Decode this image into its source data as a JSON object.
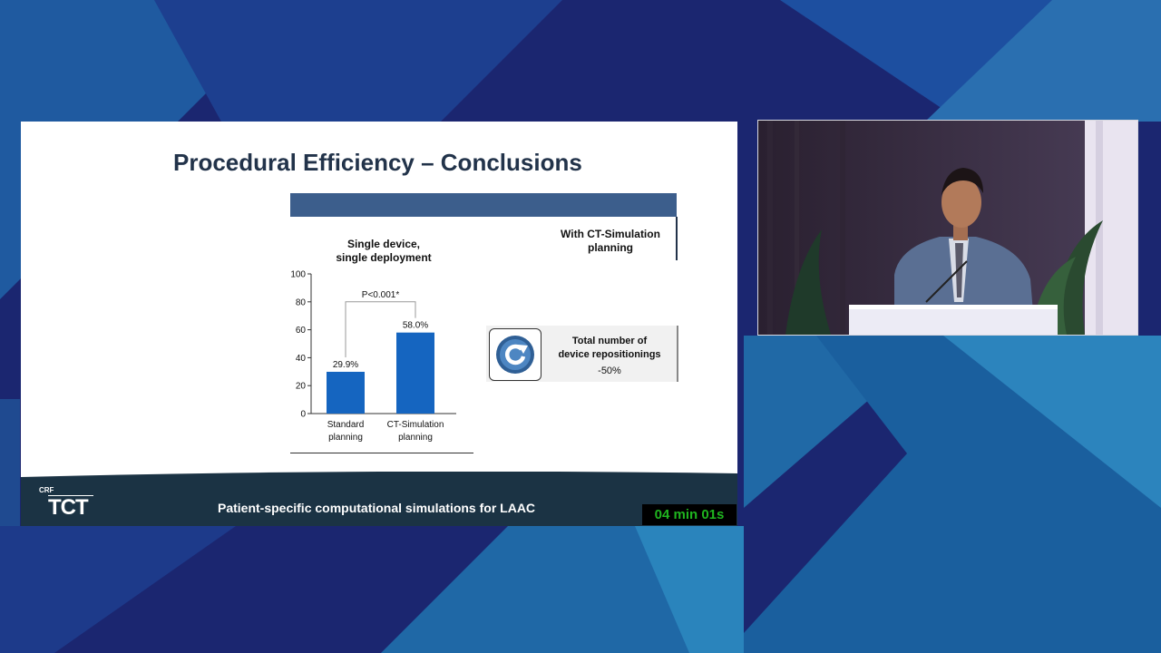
{
  "slide": {
    "title": "Procedural Efficiency – Conclusions",
    "chart_heading_line1": "Single device,",
    "chart_heading_line2": "single deployment",
    "sim_heading_line1": "With CT-Simulation",
    "sim_heading_line2": "planning",
    "metric": {
      "label_line1": "Total number of",
      "label_line2": "device repositionings",
      "value": "-50%",
      "icon": "repositioning-icon"
    }
  },
  "chart_data": {
    "type": "bar",
    "categories": [
      "Standard planning",
      "CT-Simulation planning"
    ],
    "category_lines": [
      [
        "Standard",
        "planning"
      ],
      [
        "CT-Simulation",
        "planning"
      ]
    ],
    "values": [
      29.9,
      58.0
    ],
    "data_labels": [
      "29.9%",
      "58.0%"
    ],
    "ylim": [
      0,
      100
    ],
    "yticks": [
      0,
      20,
      40,
      60,
      80,
      100
    ],
    "annotation": "P<0.001*",
    "bar_color": "#1565c0",
    "grid": false
  },
  "footer": {
    "crf_logo": "CRF",
    "tct_logo": "TCT",
    "title": "Patient-specific computational simulations for LAAC",
    "timer": "04 min 01s"
  },
  "colors": {
    "background": "#1a2a6e",
    "table_header": "#3c5e8c",
    "footer": "#1b3344",
    "timer_text": "#1fb51f"
  }
}
